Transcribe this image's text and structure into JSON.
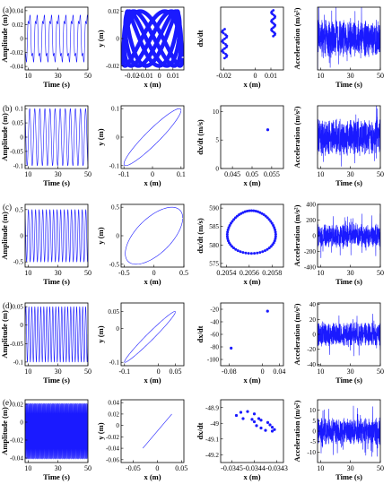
{
  "figure": {
    "row_labels": [
      "(a)",
      "(b)",
      "(c)",
      "(d)",
      "(e)"
    ]
  },
  "chart_data": [
    {
      "panel": "a-time",
      "type": "line",
      "xlabel": "Time (s)",
      "ylabel": "Amplitude (m)",
      "xlim": [
        8,
        50
      ],
      "ylim": [
        -0.045,
        0.045
      ],
      "xticks": [
        10,
        30,
        50
      ],
      "yticks": [
        -0.04,
        -0.02,
        0,
        0.02,
        0.04
      ],
      "xticklabels": [
        "10",
        "30",
        "50"
      ],
      "yticklabels": [
        "-0.04",
        "-0.02",
        "0",
        "0.02",
        "0.04"
      ],
      "signal": {
        "kind": "quasi-periodic",
        "period_s": 4.8,
        "amplitude": 0.04
      }
    },
    {
      "panel": "a-phase",
      "type": "line",
      "xlabel": "x (m)",
      "ylabel": "y (m)",
      "xlim": [
        -0.028,
        0.018
      ],
      "ylim": [
        -0.023,
        0.023
      ],
      "xticks": [
        -0.02,
        -0.01,
        0,
        0.01
      ],
      "yticks": [
        -0.02,
        0,
        0.02
      ],
      "xticklabels": [
        "-0.02",
        "-0.01",
        "0",
        "0.01"
      ],
      "yticklabels": [
        "-0.02",
        "0",
        "0.02"
      ],
      "signal": {
        "kind": "band",
        "amplitude_x": 0.021,
        "amplitude_y": 0.02
      }
    },
    {
      "panel": "a-poincare",
      "type": "scatter",
      "xlabel": "x (m)",
      "ylabel": "dx/dt",
      "xlim": [
        -0.022,
        0.018
      ],
      "ylim": [
        -0.1,
        0.7
      ],
      "xticks": [
        -0.02,
        0,
        0.01
      ],
      "yticks": [],
      "xticklabels": [
        "-0.02",
        "0",
        "0.01"
      ],
      "yticklabels": [],
      "signal": {
        "kind": "two-bands"
      }
    },
    {
      "panel": "a-accel",
      "type": "line",
      "xlabel": "Time (s)",
      "ylabel": "Acceleration (m/s²)",
      "xlim": [
        8,
        50
      ],
      "ylim": [
        -1,
        1
      ],
      "xticks": [
        10,
        30,
        50
      ],
      "yticks": [],
      "xticklabels": [
        "10",
        "30",
        "50"
      ],
      "yticklabels": [],
      "signal": {
        "kind": "noise",
        "amplitude": 0.6
      }
    },
    {
      "panel": "b-time",
      "type": "line",
      "xlabel": "Time (s)",
      "ylabel": "Amplitude (m)",
      "xlim": [
        8,
        50
      ],
      "ylim": [
        -0.11,
        0.11
      ],
      "xticks": [
        10,
        30,
        50
      ],
      "yticks": [
        -0.1,
        -0.05,
        0,
        0.05,
        0.1
      ],
      "xticklabels": [
        "10",
        "30",
        "50"
      ],
      "yticklabels": [
        "-0.1",
        "-0.05",
        "0",
        "0.05",
        "0.1"
      ],
      "signal": {
        "kind": "periodic",
        "period_s": 3.4,
        "amplitude": 0.1
      }
    },
    {
      "panel": "b-phase",
      "type": "line",
      "xlabel": "x (m)",
      "ylabel": "y (m)",
      "xlim": [
        -0.11,
        0.11
      ],
      "ylim": [
        -0.11,
        0.11
      ],
      "xticks": [
        -0.1,
        0,
        0.1
      ],
      "yticks": [
        -0.1,
        0,
        0.1
      ],
      "xticklabels": [
        "-0.1",
        "0",
        "0.1"
      ],
      "yticklabels": [
        "-0.1",
        "0",
        "0.1"
      ],
      "signal": {
        "kind": "ellipse",
        "amplitude_x": 0.1,
        "amplitude_y": 0.1,
        "phase": 0.35
      }
    },
    {
      "panel": "b-poincare",
      "type": "scatter",
      "xlabel": "x (m)",
      "ylabel": "dx/dt (m/s)",
      "xlim": [
        0.042,
        0.058
      ],
      "ylim": [
        0,
        11
      ],
      "xticks": [
        0.045,
        0.05,
        0.055
      ],
      "yticks": [
        0,
        5,
        10
      ],
      "xticklabels": [
        "0.045",
        "0.05",
        "0.055"
      ],
      "yticklabels": [
        "0",
        "5",
        "10"
      ],
      "points": [
        [
          0.054,
          6.8
        ]
      ]
    },
    {
      "panel": "b-accel",
      "type": "line",
      "xlabel": "Time (s)",
      "ylabel": "Acceleration (m/s²)",
      "xlim": [
        8,
        50
      ],
      "ylim": [
        -1,
        1
      ],
      "xticks": [
        10,
        30,
        50
      ],
      "yticks": [],
      "xticklabels": [
        "10",
        "30",
        "50"
      ],
      "yticklabels": [],
      "signal": {
        "kind": "noise",
        "amplitude": 0.6
      }
    },
    {
      "panel": "c-time",
      "type": "line",
      "xlabel": "Time (s)",
      "ylabel": "Amplitude (m)",
      "xlim": [
        8,
        50
      ],
      "ylim": [
        -0.6,
        0.6
      ],
      "xticks": [
        10,
        30,
        50
      ],
      "yticks": [
        -0.5,
        0,
        0.5
      ],
      "xticklabels": [
        "10",
        "30",
        "50"
      ],
      "yticklabels": [
        "-0.5",
        "0",
        "0.5"
      ],
      "signal": {
        "kind": "periodic",
        "period_s": 2.4,
        "amplitude": 0.5
      }
    },
    {
      "panel": "c-phase",
      "type": "line",
      "xlabel": "x (m)",
      "ylabel": "y (m)",
      "xlim": [
        -0.55,
        0.5
      ],
      "ylim": [
        -0.55,
        0.55
      ],
      "xticks": [
        -0.5,
        0,
        0.5
      ],
      "yticks": [
        -0.5,
        0,
        0.5
      ],
      "xticklabels": [
        "-0.5",
        "0",
        "0.5"
      ],
      "yticklabels": [
        "-0.5",
        "0",
        "0.5"
      ],
      "signal": {
        "kind": "ellipse",
        "amplitude_x": 0.48,
        "amplitude_y": 0.5,
        "phase": 0.9
      }
    },
    {
      "panel": "c-poincare",
      "type": "scatter",
      "xlabel": "x (m)",
      "ylabel": "dx/dt (m/s)",
      "xlim": [
        0.20535,
        0.2059
      ],
      "ylim": [
        574,
        591
      ],
      "xticks": [
        0.2054,
        0.2056,
        0.2058
      ],
      "yticks": [
        575,
        580,
        585,
        590
      ],
      "xticklabels": [
        "0.2054",
        "0.2056",
        "0.2058"
      ],
      "yticklabels": [
        "575",
        "580",
        "585",
        "590"
      ],
      "signal": {
        "kind": "closed-curve",
        "cx": 0.20562,
        "cy": 583.5,
        "rx": 0.00021,
        "ry": 5.8,
        "points": 60
      }
    },
    {
      "panel": "c-accel",
      "type": "line",
      "xlabel": "Time (s)",
      "ylabel": "Acceleration (m/s²)",
      "xlim": [
        8,
        50
      ],
      "ylim": [
        -400,
        400
      ],
      "xticks": [
        10,
        30,
        50
      ],
      "yticks": [
        -400,
        -200,
        0,
        200,
        400
      ],
      "xticklabels": [
        "10",
        "30",
        "50"
      ],
      "yticklabels": [
        "-400",
        "-200",
        "0",
        "200",
        "400"
      ],
      "signal": {
        "kind": "noise",
        "amplitude": 150
      }
    },
    {
      "panel": "d-time",
      "type": "line",
      "xlabel": "Time (s)",
      "ylabel": "Amplitude (m)",
      "xlim": [
        8,
        50
      ],
      "ylim": [
        -0.11,
        0.06
      ],
      "xticks": [
        10,
        30,
        50
      ],
      "yticks": [
        -0.1,
        -0.05,
        0,
        0.05
      ],
      "xticklabels": [
        "10",
        "30",
        "50"
      ],
      "yticklabels": [
        "-0.1",
        "-0.05",
        "0",
        "0.05"
      ],
      "signal": {
        "kind": "periodic",
        "period_s": 2.0,
        "amplitude": 0.075,
        "offset": -0.025
      }
    },
    {
      "panel": "d-phase",
      "type": "line",
      "xlabel": "x (m)",
      "ylabel": "y (m)",
      "xlim": [
        -0.11,
        0.075
      ],
      "ylim": [
        -0.11,
        0.075
      ],
      "xticks": [
        -0.1,
        0,
        0.05
      ],
      "yticks": [
        -0.1,
        0,
        0.05
      ],
      "xticklabels": [
        "-0.1",
        "0",
        "0.05"
      ],
      "yticklabels": [
        "-0.1",
        "0",
        "0.05"
      ],
      "signal": {
        "kind": "ellipse",
        "amplitude_x": 0.075,
        "amplitude_y": 0.075,
        "phase": 0.2,
        "center": -0.025
      }
    },
    {
      "panel": "d-poincare",
      "type": "scatter",
      "xlabel": "x (m)",
      "ylabel": "dx/dt",
      "xlim": [
        -0.1,
        0.05
      ],
      "ylim": [
        -110,
        -10
      ],
      "xticks": [
        -0.08,
        0,
        0.04
      ],
      "yticks": [
        -100,
        -80,
        -60,
        -40,
        -20
      ],
      "xticklabels": [
        "-0.08",
        "0",
        "0.04"
      ],
      "yticklabels": [
        "-100",
        "-80",
        "-60",
        "-40",
        "-20"
      ],
      "points": [
        [
          -0.075,
          -82
        ],
        [
          0.012,
          -23
        ]
      ]
    },
    {
      "panel": "d-accel",
      "type": "line",
      "xlabel": "Time (s)",
      "ylabel": "Acceleration (m/s²)",
      "xlim": [
        8,
        50
      ],
      "ylim": [
        -42,
        42
      ],
      "xticks": [
        10,
        30,
        50
      ],
      "yticks": [
        -40,
        -20,
        0,
        20,
        40
      ],
      "xticklabels": [
        "10",
        "30",
        "50"
      ],
      "yticklabels": [
        "-40",
        "-20",
        "0",
        "20",
        "40"
      ],
      "signal": {
        "kind": "noise",
        "amplitude": 16
      }
    },
    {
      "panel": "e-time",
      "type": "line",
      "xlabel": "Time (s)",
      "ylabel": "Amplitude (m)",
      "xlim": [
        8,
        50
      ],
      "ylim": [
        -0.045,
        0.025
      ],
      "xticks": [
        10,
        30,
        50
      ],
      "yticks": [
        -0.04,
        -0.02,
        0,
        0.02
      ],
      "xticklabels": [
        "10",
        "30",
        "50"
      ],
      "yticklabels": [
        "-0.04",
        "-0.02",
        "0",
        "0.02"
      ],
      "signal": {
        "kind": "periodic",
        "period_s": 0.5,
        "amplitude": 0.031,
        "offset": -0.01
      }
    },
    {
      "panel": "e-phase",
      "type": "line",
      "xlabel": "x (m)",
      "ylabel": "y (m)",
      "xlim": [
        -0.075,
        0.055
      ],
      "ylim": [
        -0.065,
        0.045
      ],
      "xticks": [
        -0.05,
        0,
        0.05
      ],
      "yticks": [
        -0.06,
        -0.04,
        -0.02,
        0,
        0.02,
        0.04
      ],
      "xticklabels": [
        "-0.05",
        "0",
        "0.05"
      ],
      "yticklabels": [
        "-0.06",
        "-0.04",
        "-0.02",
        "0",
        "0.02",
        "0.04"
      ],
      "points": [
        [
          -0.03,
          -0.04
        ],
        [
          0.03,
          0.02
        ]
      ]
    },
    {
      "panel": "e-poincare",
      "type": "scatter",
      "xlabel": "x (m)",
      "ylabel": "dx/dt",
      "xlim": [
        -0.03455,
        -0.03427
      ],
      "ylim": [
        -49.25,
        -48.85
      ],
      "xticks": [
        -0.0345,
        -0.0344,
        -0.0343
      ],
      "yticks": [
        -49.2,
        -49.1,
        -49,
        -48.9
      ],
      "xticklabels": [
        "-0.0345",
        "-0.0344",
        "-0.0343"
      ],
      "yticklabels": [
        "-49.2",
        "-49.1",
        "-49",
        "-48.9"
      ],
      "points": [
        [
          -0.03443,
          -48.925
        ],
        [
          -0.03446,
          -48.93
        ],
        [
          -0.03448,
          -48.95
        ],
        [
          -0.03445,
          -48.97
        ],
        [
          -0.03441,
          -48.975
        ],
        [
          -0.03437,
          -48.98
        ],
        [
          -0.03434,
          -48.995
        ],
        [
          -0.03433,
          -49.01
        ],
        [
          -0.03432,
          -49.025
        ],
        [
          -0.03431,
          -49.04
        ],
        [
          -0.03432,
          -49.05
        ],
        [
          -0.03435,
          -49.045
        ],
        [
          -0.03437,
          -49.03
        ],
        [
          -0.03439,
          -49.015
        ],
        [
          -0.0344,
          -48.99
        ],
        [
          -0.03438,
          -48.97
        ],
        [
          -0.0344,
          -48.94
        ]
      ]
    },
    {
      "panel": "e-accel",
      "type": "line",
      "xlabel": "Time (s)",
      "ylabel": "Acceleration (m/s²)",
      "xlim": [
        8,
        50
      ],
      "ylim": [
        -15,
        15
      ],
      "xticks": [
        10,
        30,
        50
      ],
      "yticks": [
        -10,
        -5,
        0,
        5,
        10
      ],
      "xticklabels": [
        "10",
        "30",
        "50"
      ],
      "yticklabels": [
        "-10",
        "-5",
        "0",
        "5",
        "10"
      ],
      "signal": {
        "kind": "noise",
        "amplitude": 6.5
      }
    }
  ]
}
